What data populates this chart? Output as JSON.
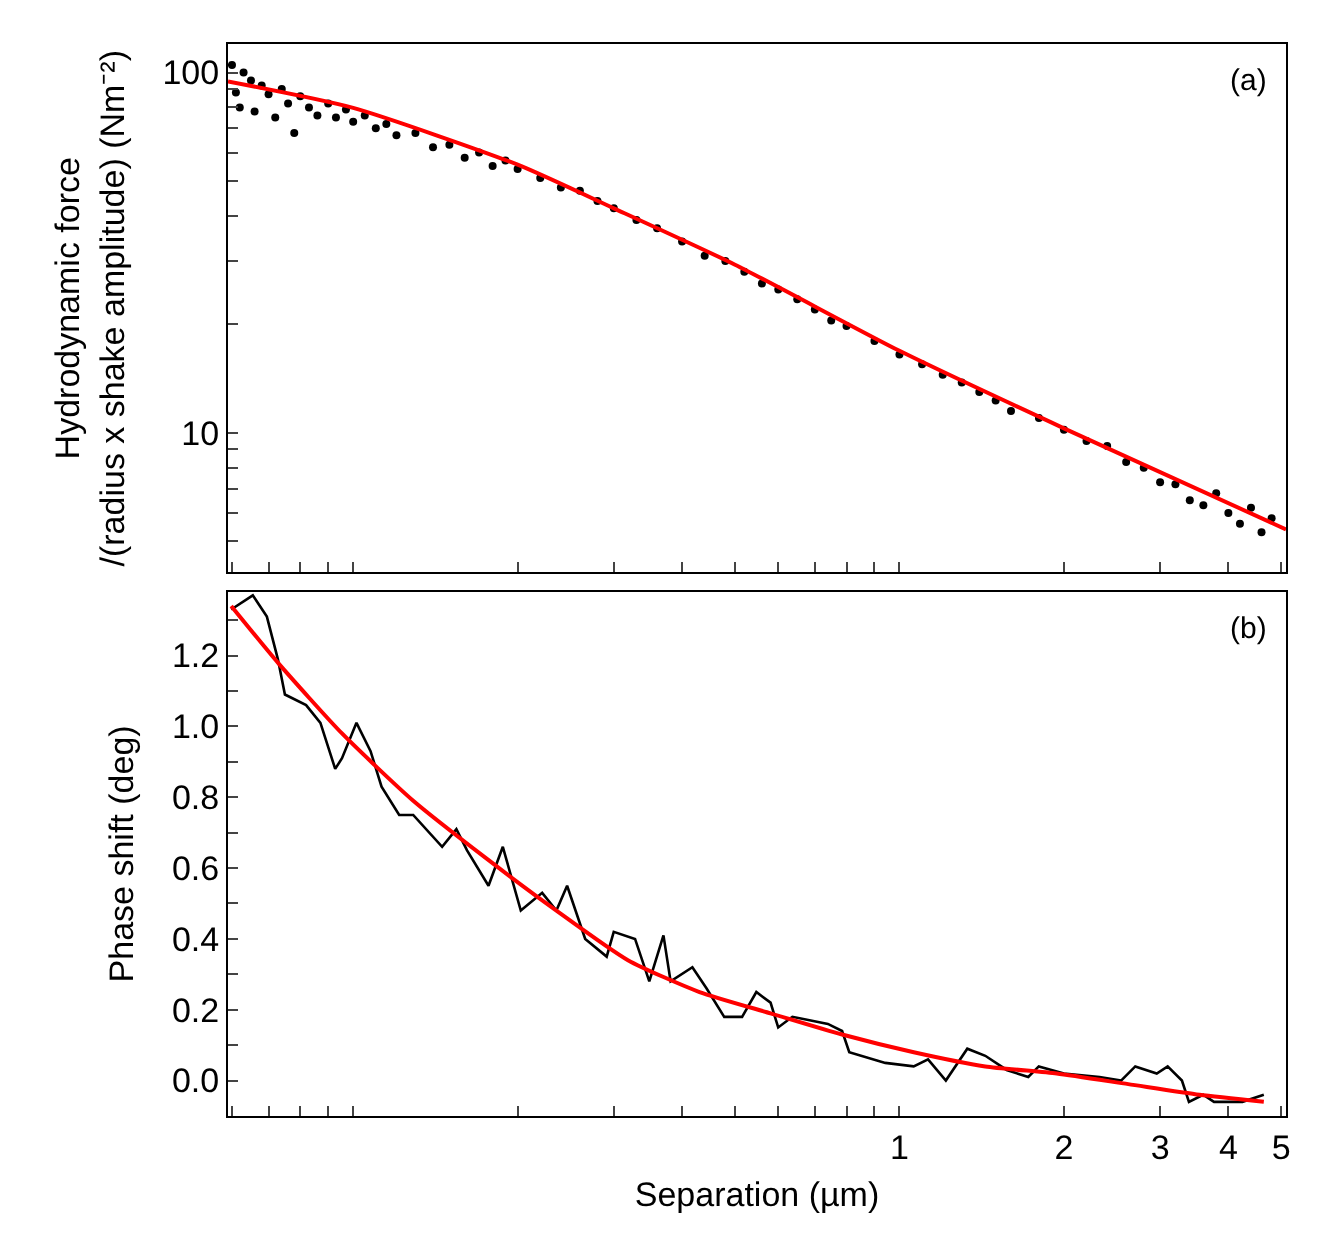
{
  "chart_data": [
    {
      "type": "scatter",
      "ylabel": "Hydrodynamic force\n/(radius x shake amplitude) (Nm⁻²)",
      "annotations": [
        "(a)"
      ],
      "log": "xy",
      "marker": "circle",
      "tick_labels": "y",
      "xlim": [
        0.059,
        5.1
      ],
      "ylim": [
        4.1,
        120
      ],
      "xticks": [
        {
          "value": 0.06,
          "label": null
        },
        {
          "value": 0.07,
          "label": null
        },
        {
          "value": 0.08,
          "label": null
        },
        {
          "value": 0.09,
          "label": null
        },
        {
          "value": 0.1,
          "label": null
        },
        {
          "value": 0.2,
          "label": null
        },
        {
          "value": 0.3,
          "label": null
        },
        {
          "value": 0.4,
          "label": null
        },
        {
          "value": 0.5,
          "label": null
        },
        {
          "value": 0.6,
          "label": null
        },
        {
          "value": 0.7,
          "label": null
        },
        {
          "value": 0.8,
          "label": null
        },
        {
          "value": 0.9,
          "label": null
        },
        {
          "value": 1,
          "label": null
        },
        {
          "value": 2,
          "label": null
        },
        {
          "value": 3,
          "label": null
        },
        {
          "value": 4,
          "label": null
        },
        {
          "value": 5,
          "label": null
        }
      ],
      "yticks": [
        {
          "value": 5,
          "label": null
        },
        {
          "value": 6,
          "label": null
        },
        {
          "value": 7,
          "label": null
        },
        {
          "value": 8,
          "label": null
        },
        {
          "value": 9,
          "label": null
        },
        10,
        {
          "value": 20,
          "label": null
        },
        {
          "value": 30,
          "label": null
        },
        {
          "value": 40,
          "label": null
        },
        {
          "value": 50,
          "label": null
        },
        {
          "value": 60,
          "label": null
        },
        {
          "value": 70,
          "label": null
        },
        {
          "value": 80,
          "label": null
        },
        {
          "value": 90,
          "label": null
        },
        100
      ],
      "series": [
        {
          "color": "#000000",
          "x": [
            0.06,
            0.061,
            0.062,
            0.063,
            0.065,
            0.066,
            0.068,
            0.07,
            0.072,
            0.074,
            0.076,
            0.078,
            0.08,
            0.083,
            0.086,
            0.09,
            0.093,
            0.097,
            0.1,
            0.105,
            0.11,
            0.115,
            0.12,
            0.13,
            0.14,
            0.15,
            0.16,
            0.17,
            0.18,
            0.19,
            0.2,
            0.22,
            0.24,
            0.26,
            0.28,
            0.3,
            0.33,
            0.36,
            0.4,
            0.44,
            0.48,
            0.52,
            0.56,
            0.6,
            0.65,
            0.7,
            0.75,
            0.8,
            0.9,
            1.0,
            1.1,
            1.2,
            1.3,
            1.4,
            1.5,
            1.6,
            1.8,
            2.0,
            2.2,
            2.4,
            2.6,
            2.8,
            3.0,
            3.2,
            3.4,
            3.6,
            3.8,
            4.0,
            4.2,
            4.4,
            4.6,
            4.8
          ],
          "values": [
            105,
            88,
            80,
            100,
            95,
            78,
            92,
            87,
            75,
            90,
            82,
            68,
            86,
            80,
            76,
            82,
            75,
            79,
            73,
            76,
            70,
            72,
            67,
            68,
            62,
            63,
            58,
            60,
            55,
            57,
            54,
            51,
            48,
            47,
            44,
            42,
            39,
            37,
            34,
            31,
            30,
            28,
            26,
            25,
            23.5,
            22,
            20.5,
            19.8,
            18,
            16.5,
            15.5,
            14.5,
            13.8,
            13,
            12.3,
            11.5,
            11,
            10.2,
            9.5,
            9.2,
            8.3,
            8,
            7.3,
            7.2,
            6.5,
            6.3,
            6.8,
            6,
            5.6,
            6.2,
            5.3,
            5.8
          ]
        },
        {
          "type": "line",
          "marker": "none",
          "color": "#ff0000",
          "x": [
            0.059,
            0.1,
            0.2,
            0.3,
            0.5,
            1,
            2,
            5.1
          ],
          "values": [
            94.5,
            79.8,
            55.5,
            42,
            29.3,
            16.9,
            10.3,
            5.4
          ]
        }
      ]
    },
    {
      "type": "line",
      "xlabel": "Separation (µm)",
      "ylabel": "Phase shift (deg)",
      "annotations": [
        "(b)"
      ],
      "log": "x",
      "xlim": [
        0.059,
        5.1
      ],
      "ylim": [
        -0.1,
        1.38
      ],
      "xticks": [
        {
          "value": 0.06,
          "label": null
        },
        {
          "value": 0.07,
          "label": null
        },
        {
          "value": 0.08,
          "label": null
        },
        {
          "value": 0.09,
          "label": null
        },
        {
          "value": 0.1,
          "label": null
        },
        {
          "value": 0.2,
          "label": null
        },
        {
          "value": 0.3,
          "label": null
        },
        {
          "value": 0.4,
          "label": null
        },
        {
          "value": 0.5,
          "label": null
        },
        {
          "value": 0.6,
          "label": null
        },
        {
          "value": 0.7,
          "label": null
        },
        {
          "value": 0.8,
          "label": null
        },
        {
          "value": 0.9,
          "label": null
        },
        1,
        2,
        3,
        4,
        5
      ],
      "yticks": [
        {
          "value": 0.0,
          "label": "0.0"
        },
        {
          "value": 0.1,
          "label": null
        },
        {
          "value": 0.2,
          "label": "0.2"
        },
        {
          "value": 0.3,
          "label": null
        },
        {
          "value": 0.4,
          "label": "0.4"
        },
        {
          "value": 0.5,
          "label": null
        },
        {
          "value": 0.6,
          "label": "0.6"
        },
        {
          "value": 0.7,
          "label": null
        },
        {
          "value": 0.8,
          "label": "0.8"
        },
        {
          "value": 0.9,
          "label": null
        },
        {
          "value": 1.0,
          "label": "1.0"
        },
        {
          "value": 1.1,
          "label": null
        },
        {
          "value": 1.2,
          "label": "1.2"
        },
        {
          "value": 1.3,
          "label": null
        }
      ],
      "series": [
        {
          "color": "#000000",
          "x": [
            0.0598,
            0.0655,
            0.0695,
            0.0728,
            0.075,
            0.082,
            0.0871,
            0.0927,
            0.0954,
            0.1014,
            0.1076,
            0.1127,
            0.1214,
            0.1288,
            0.1455,
            0.1545,
            0.1616,
            0.1769,
            0.1879,
            0.2027,
            0.2218,
            0.2355,
            0.2464,
            0.2659,
            0.2911,
            0.2999,
            0.3281,
            0.3484,
            0.3698,
            0.3811,
            0.4178,
            0.4436,
            0.4777,
            0.5152,
            0.547,
            0.5808,
            0.5998,
            0.6368,
            0.7396,
            0.7852,
            0.8093,
            0.9419,
            1.062,
            1.128,
            1.216,
            1.331,
            1.436,
            1.571,
            1.721,
            1.799,
            2.0,
            2.324,
            2.545,
            2.702,
            2.958,
            3.097,
            3.289,
            3.388,
            3.597,
            3.765,
            4.245,
            4.645
          ],
          "values": [
            1.33,
            1.37,
            1.31,
            1.19,
            1.09,
            1.06,
            1.01,
            0.88,
            0.91,
            1.01,
            0.93,
            0.83,
            0.75,
            0.75,
            0.66,
            0.71,
            0.65,
            0.55,
            0.66,
            0.48,
            0.53,
            0.48,
            0.55,
            0.4,
            0.35,
            0.42,
            0.4,
            0.28,
            0.41,
            0.28,
            0.32,
            0.26,
            0.18,
            0.18,
            0.25,
            0.22,
            0.15,
            0.18,
            0.16,
            0.14,
            0.08,
            0.05,
            0.04,
            0.06,
            0.0,
            0.09,
            0.07,
            0.03,
            0.01,
            0.04,
            0.02,
            0.01,
            0.0,
            0.04,
            0.02,
            0.04,
            0.0,
            -0.06,
            -0.04,
            -0.06,
            -0.06,
            -0.04
          ]
        },
        {
          "color": "#ff0000",
          "x": [
            0.0598,
            0.0728,
            0.0954,
            0.1288,
            0.1743,
            0.2355,
            0.3184,
            0.4305,
            0.5808,
            0.7852,
            1.062,
            1.436,
            1.94,
            2.623,
            3.542,
            4.645
          ],
          "values": [
            1.34,
            1.18,
            0.98,
            0.79,
            0.63,
            0.48,
            0.34,
            0.25,
            0.19,
            0.13,
            0.08,
            0.04,
            0.02,
            -0.01,
            -0.04,
            -0.06
          ]
        }
      ]
    }
  ]
}
